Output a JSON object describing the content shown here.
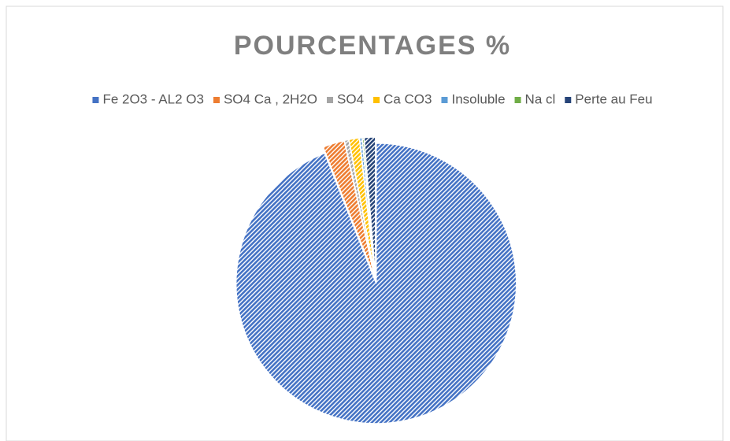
{
  "chart_data": {
    "type": "pie",
    "title": "POURCENTAGES %",
    "categories": [
      "Fe 2O3 - AL2 O3",
      "SO4 Ca , 2H2O",
      "SO4",
      "Ca CO3",
      "Insoluble",
      "Na cl",
      "Perte au Feu"
    ],
    "values": [
      94,
      2.5,
      0.5,
      1.2,
      0.3,
      0.2,
      1.3
    ],
    "colors": [
      "#4472c4",
      "#ed7d31",
      "#a5a5a5",
      "#ffc000",
      "#5b9bd5",
      "#70ad47",
      "#264478"
    ],
    "legend": "top"
  }
}
